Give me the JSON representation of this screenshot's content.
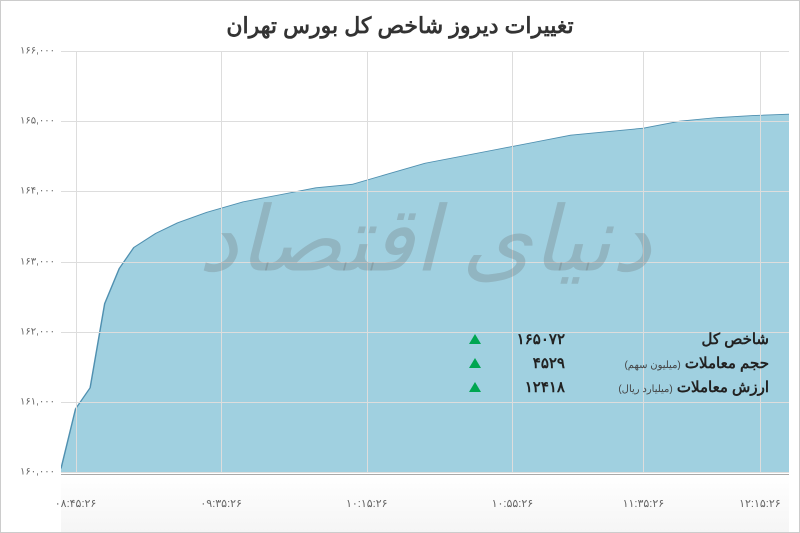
{
  "title": "تغییرات دیروز شاخص کل بورس تهران",
  "watermark": "دنیای اقتصاد",
  "chart": {
    "type": "area",
    "background_color": "#ffffff",
    "area_color": "#a0d0e0",
    "line_color": "#5090b0",
    "grid_color": "#dddddd",
    "ylim": [
      160000,
      166000
    ],
    "ytick_step": 1000,
    "y_ticks": [
      {
        "v": 160000,
        "label": "۱۶۰,۰۰۰"
      },
      {
        "v": 161000,
        "label": "۱۶۱,۰۰۰"
      },
      {
        "v": 162000,
        "label": "۱۶۲,۰۰۰"
      },
      {
        "v": 163000,
        "label": "۱۶۳,۰۰۰"
      },
      {
        "v": 164000,
        "label": "۱۶۴,۰۰۰"
      },
      {
        "v": 165000,
        "label": "۱۶۵,۰۰۰"
      },
      {
        "v": 166000,
        "label": "۱۶۶,۰۰۰"
      }
    ],
    "x_ticks": [
      {
        "p": 0.02,
        "label": "۰۸:۴۵:۲۶"
      },
      {
        "p": 0.22,
        "label": "۰۹:۳۵:۲۶"
      },
      {
        "p": 0.42,
        "label": "۱۰:۱۵:۲۶"
      },
      {
        "p": 0.62,
        "label": "۱۰:۵۵:۲۶"
      },
      {
        "p": 0.8,
        "label": "۱۱:۳۵:۲۶"
      },
      {
        "p": 0.96,
        "label": "۱۲:۱۵:۲۶"
      }
    ],
    "series": [
      {
        "x": 0.0,
        "y": 160050
      },
      {
        "x": 0.02,
        "y": 160900
      },
      {
        "x": 0.04,
        "y": 161200
      },
      {
        "x": 0.06,
        "y": 162400
      },
      {
        "x": 0.08,
        "y": 162900
      },
      {
        "x": 0.1,
        "y": 163200
      },
      {
        "x": 0.13,
        "y": 163400
      },
      {
        "x": 0.16,
        "y": 163550
      },
      {
        "x": 0.2,
        "y": 163700
      },
      {
        "x": 0.25,
        "y": 163850
      },
      {
        "x": 0.3,
        "y": 163950
      },
      {
        "x": 0.35,
        "y": 164050
      },
      {
        "x": 0.4,
        "y": 164100
      },
      {
        "x": 0.45,
        "y": 164250
      },
      {
        "x": 0.5,
        "y": 164400
      },
      {
        "x": 0.55,
        "y": 164500
      },
      {
        "x": 0.6,
        "y": 164600
      },
      {
        "x": 0.65,
        "y": 164700
      },
      {
        "x": 0.7,
        "y": 164800
      },
      {
        "x": 0.75,
        "y": 164850
      },
      {
        "x": 0.8,
        "y": 164900
      },
      {
        "x": 0.85,
        "y": 165000
      },
      {
        "x": 0.9,
        "y": 165050
      },
      {
        "x": 0.95,
        "y": 165080
      },
      {
        "x": 1.0,
        "y": 165100
      }
    ]
  },
  "stats": [
    {
      "label": "شاخص کل",
      "unit": "",
      "value": "۱۶۵۰۷۲",
      "arrow": "up"
    },
    {
      "label": "حجم معاملات",
      "unit": "(میلیون سهم)",
      "value": "۴۵۲۹",
      "arrow": "up"
    },
    {
      "label": "ارزش معاملات",
      "unit": "(میلیارد ریال)",
      "value": "۱۲۴۱۸",
      "arrow": "up"
    }
  ],
  "colors": {
    "title_text": "#333333",
    "axis_text": "#666666",
    "arrow_up": "#00a651",
    "watermark": "rgba(100,100,100,0.25)"
  }
}
